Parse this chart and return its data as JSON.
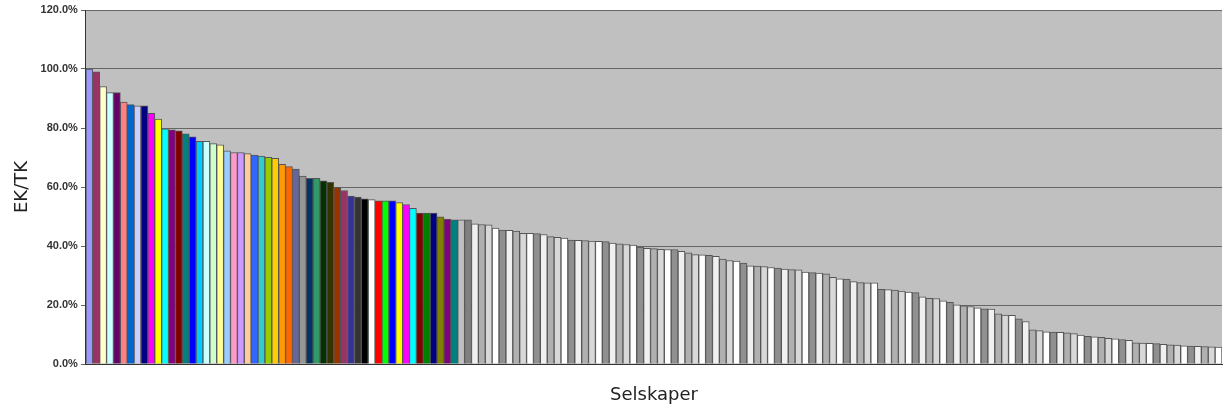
{
  "chart_data": {
    "type": "bar",
    "xlabel": "Selskaper",
    "ylabel": "EK/TK",
    "categories": [
      null,
      null,
      null,
      null,
      null,
      null,
      null,
      null,
      null,
      null,
      null,
      null,
      null,
      null,
      null,
      null,
      null,
      null,
      null,
      null,
      null,
      null,
      null,
      null,
      null,
      null,
      null,
      null,
      null,
      null,
      null,
      null,
      null,
      null,
      null,
      null,
      null,
      null,
      null,
      null,
      null,
      null,
      null,
      null,
      null,
      null,
      null,
      null,
      null,
      null,
      null,
      null,
      null,
      null,
      null,
      null,
      null,
      null,
      null,
      null,
      null,
      null,
      null,
      null,
      null,
      null,
      null,
      null,
      null,
      null,
      null,
      null,
      null,
      null,
      null,
      null,
      null,
      null,
      null,
      null,
      null,
      null,
      null,
      null,
      null,
      null,
      null,
      null,
      null,
      null,
      null,
      null,
      null,
      null,
      null,
      null,
      null,
      null,
      null,
      null,
      null,
      null,
      null,
      null,
      null,
      null,
      null,
      null,
      null,
      null,
      null,
      null,
      null,
      null,
      null,
      null,
      null,
      null,
      null,
      null,
      null,
      null,
      null,
      null,
      null,
      null,
      null,
      null,
      null,
      null,
      null,
      null,
      null,
      null,
      null,
      null,
      null,
      null,
      null,
      null,
      null,
      null,
      null,
      null,
      null,
      null,
      null,
      null,
      null,
      null,
      null,
      null,
      null,
      null,
      null,
      null,
      null,
      null,
      null,
      null,
      null,
      null,
      null,
      null,
      null
    ],
    "values": [
      100,
      99,
      94,
      92,
      92,
      88.8,
      87.9,
      87.5,
      87.5,
      85,
      83,
      79.7,
      79.4,
      79,
      78,
      77,
      75.5,
      75.5,
      74.7,
      74.3,
      72.3,
      71.7,
      71.7,
      71.3,
      70.8,
      70.5,
      70.1,
      69.7,
      67.7,
      66.9,
      66.1,
      63.7,
      62.9,
      62.9,
      62.1,
      61.6,
      59.9,
      58.8,
      56.9,
      56.6,
      56,
      55.7,
      55.3,
      55.3,
      55.3,
      54.7,
      54,
      52.8,
      51.2,
      51.2,
      51.2,
      49.9,
      49.1,
      48.9,
      48.9,
      48.9,
      47.5,
      47.3,
      47.2,
      46.1,
      45.4,
      45.3,
      45.1,
      44.3,
      44.3,
      44.2,
      43.9,
      43.2,
      42.9,
      42.7,
      42,
      41.9,
      41.8,
      41.7,
      41.6,
      41.5,
      41,
      40.7,
      40.5,
      40.3,
      39.6,
      39.2,
      39.1,
      38.9,
      38.8,
      38.8,
      38.2,
      37.7,
      37.1,
      37,
      36.8,
      36.5,
      35.6,
      35.1,
      34.9,
      34.2,
      33.3,
      33.2,
      33,
      32.7,
      32.5,
      32.2,
      32,
      31.9,
      31.2,
      31,
      30.8,
      30.6,
      29.4,
      28.9,
      28.8,
      27.9,
      27.6,
      27.5,
      27.5,
      25.3,
      25.2,
      25.1,
      24.7,
      24.4,
      24.2,
      22.8,
      22.3,
      22.2,
      21.4,
      20.9,
      20.1,
      19.7,
      19.5,
      19,
      18.7,
      18.6,
      17,
      16.6,
      16.5,
      15.3,
      14.4,
      11.6,
      11.3,
      10.9,
      10.8,
      10.7,
      10.6,
      10.3,
      9.8,
      9.4,
      9.2,
      9,
      8.7,
      8.5,
      8.3,
      8,
      7.2,
      7.1,
      7,
      6.9,
      6.7,
      6.5,
      6.4,
      6.2,
      6.1,
      6,
      5.9,
      5.8,
      5.7
    ],
    "colors": [
      "#9999ff",
      "#993366",
      "#ffffcc",
      "#ccffff",
      "#660066",
      "#ff8080",
      "#0066cc",
      "#ccccff",
      "#000080",
      "#ff00ff",
      "#ffff00",
      "#00ffff",
      "#800080",
      "#800000",
      "#008080",
      "#0000ff",
      "#00ccff",
      "#ccffff",
      "#ccffcc",
      "#ffff99",
      "#99ccff",
      "#ff99cc",
      "#cc99ff",
      "#ffcc99",
      "#3366ff",
      "#33cccc",
      "#99cc00",
      "#ffcc00",
      "#ff9900",
      "#ff6600",
      "#666699",
      "#969696",
      "#003366",
      "#339966",
      "#003300",
      "#333300",
      "#993300",
      "#993366",
      "#333399",
      "#333333",
      "#000000",
      "#ffffff",
      "#ff0000",
      "#00ff00",
      "#0000ff",
      "#ffff00",
      "#ff00ff",
      "#00ffff",
      "#800000",
      "#008000",
      "#000080",
      "#808000",
      "#800080",
      "#008080",
      "#c0c0c0",
      "#808080",
      "#f0f0f0",
      "#b0b0b0",
      "#d8d8d8",
      "#ffffff",
      "#909090",
      "#f0f0f0",
      "#b0b0b0",
      "#d8d8d8",
      "#ffffff",
      "#909090",
      "#f0f0f0",
      "#b0b0b0",
      "#d8d8d8",
      "#ffffff",
      "#909090",
      "#f0f0f0",
      "#b0b0b0",
      "#d8d8d8",
      "#ffffff",
      "#909090",
      "#f0f0f0",
      "#b0b0b0",
      "#d8d8d8",
      "#ffffff",
      "#909090",
      "#f0f0f0",
      "#b0b0b0",
      "#d8d8d8",
      "#ffffff",
      "#909090",
      "#f0f0f0",
      "#b0b0b0",
      "#d8d8d8",
      "#ffffff",
      "#909090",
      "#f0f0f0",
      "#b0b0b0",
      "#d8d8d8",
      "#ffffff",
      "#909090",
      "#f0f0f0",
      "#b0b0b0",
      "#d8d8d8",
      "#ffffff",
      "#909090",
      "#f0f0f0",
      "#b0b0b0",
      "#d8d8d8",
      "#ffffff",
      "#909090",
      "#f0f0f0",
      "#b0b0b0",
      "#d8d8d8",
      "#ffffff",
      "#909090",
      "#f0f0f0",
      "#b0b0b0",
      "#d8d8d8",
      "#ffffff",
      "#909090",
      "#f0f0f0",
      "#b0b0b0",
      "#d8d8d8",
      "#ffffff",
      "#909090",
      "#f0f0f0",
      "#b0b0b0",
      "#d8d8d8",
      "#ffffff",
      "#909090",
      "#f0f0f0",
      "#b0b0b0",
      "#d8d8d8",
      "#ffffff",
      "#909090",
      "#f0f0f0",
      "#b0b0b0",
      "#d8d8d8",
      "#ffffff",
      "#909090",
      "#f0f0f0",
      "#b0b0b0",
      "#d8d8d8",
      "#ffffff",
      "#909090",
      "#f0f0f0",
      "#b0b0b0",
      "#d8d8d8",
      "#ffffff",
      "#909090",
      "#f0f0f0",
      "#b0b0b0",
      "#d8d8d8",
      "#ffffff",
      "#909090",
      "#f0f0f0",
      "#b0b0b0",
      "#d8d8d8",
      "#ffffff",
      "#909090",
      "#f0f0f0",
      "#b0b0b0",
      "#d8d8d8",
      "#ffffff",
      "#909090",
      "#f0f0f0",
      "#b0b0b0",
      "#d8d8d8",
      "#ffffff"
    ],
    "ylim": [
      0,
      120
    ],
    "yticks": [
      {
        "value": 0,
        "label": "0.0%"
      },
      {
        "value": 20,
        "label": "20.0%"
      },
      {
        "value": 40,
        "label": "40.0%"
      },
      {
        "value": 60,
        "label": "60.0%"
      },
      {
        "value": 80,
        "label": "80.0%"
      },
      {
        "value": 100,
        "label": "100.0%"
      },
      {
        "value": 120,
        "label": "120.0%"
      }
    ],
    "grid": "y",
    "legend": false
  }
}
